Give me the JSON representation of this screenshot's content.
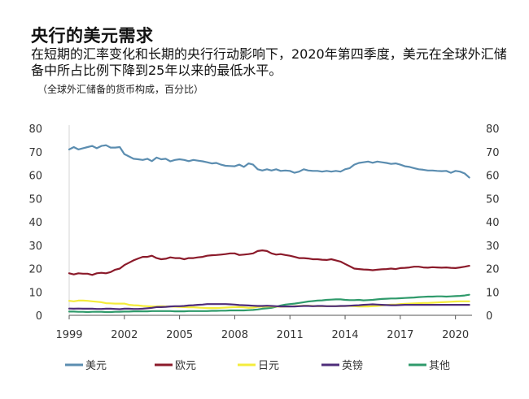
{
  "header": {
    "title": "央行的美元需求",
    "subtitle": "在短期的汇率变化和长期的央行行动影响下，2020年第四季度，美元在全球外汇储备中所占比例下降到25年以来的最低水平。",
    "note": "（全球外汇储备的货币构成，百分比）"
  },
  "chart_data": {
    "type": "line",
    "title": "",
    "xlabel": "",
    "ylabel": "",
    "ylim": [
      0,
      80
    ],
    "y_ticks": [
      0,
      10,
      20,
      30,
      40,
      50,
      60,
      70,
      80
    ],
    "xlim": [
      1999,
      2020.9
    ],
    "x_ticks": [
      1999,
      2002,
      2005,
      2008,
      2011,
      2014,
      2017,
      2020
    ],
    "grid": false,
    "legend_position": "bottom",
    "x": [
      1999,
      1999.25,
      1999.5,
      1999.75,
      2000,
      2000.25,
      2000.5,
      2000.75,
      2001,
      2001.25,
      2001.5,
      2001.75,
      2002,
      2002.25,
      2002.5,
      2002.75,
      2003,
      2003.25,
      2003.5,
      2003.75,
      2004,
      2004.25,
      2004.5,
      2004.75,
      2005,
      2005.25,
      2005.5,
      2005.75,
      2006,
      2006.25,
      2006.5,
      2006.75,
      2007,
      2007.25,
      2007.5,
      2007.75,
      2008,
      2008.25,
      2008.5,
      2008.75,
      2009,
      2009.25,
      2009.5,
      2009.75,
      2010,
      2010.25,
      2010.5,
      2010.75,
      2011,
      2011.25,
      2011.5,
      2011.75,
      2012,
      2012.25,
      2012.5,
      2012.75,
      2013,
      2013.25,
      2013.5,
      2013.75,
      2014,
      2014.25,
      2014.5,
      2014.75,
      2015,
      2015.25,
      2015.5,
      2015.75,
      2016,
      2016.25,
      2016.5,
      2016.75,
      2017,
      2017.25,
      2017.5,
      2017.75,
      2018,
      2018.25,
      2018.5,
      2018.75,
      2019,
      2019.25,
      2019.5,
      2019.75,
      2020,
      2020.25,
      2020.5,
      2020.75
    ],
    "series": [
      {
        "name": "美元",
        "color": "#5b8db0",
        "values": [
          71.0,
          72.0,
          71.0,
          71.5,
          72.0,
          72.5,
          71.5,
          72.5,
          72.8,
          71.8,
          71.8,
          72.0,
          69.0,
          68.0,
          67.0,
          66.8,
          66.5,
          67.0,
          66.0,
          67.5,
          66.8,
          67.0,
          65.9,
          66.5,
          66.8,
          66.5,
          66.0,
          66.5,
          66.2,
          65.9,
          65.5,
          65.0,
          65.2,
          64.5,
          64.0,
          63.9,
          63.8,
          64.5,
          63.5,
          65.0,
          64.5,
          62.5,
          62.0,
          62.5,
          62.0,
          62.5,
          61.8,
          62.0,
          61.8,
          61.0,
          61.5,
          62.5,
          62.0,
          61.8,
          61.8,
          61.5,
          61.8,
          61.5,
          61.8,
          61.5,
          62.5,
          63.0,
          64.5,
          65.2,
          65.5,
          65.8,
          65.3,
          65.8,
          65.5,
          65.2,
          64.8,
          65.0,
          64.5,
          63.8,
          63.5,
          63.0,
          62.5,
          62.3,
          62.0,
          62.0,
          61.8,
          61.7,
          61.8,
          61.0,
          61.8,
          61.5,
          60.7,
          59.0
        ]
      },
      {
        "name": "欧元",
        "color": "#8b1a2a",
        "values": [
          18.0,
          17.5,
          18.0,
          17.8,
          17.8,
          17.3,
          18.0,
          18.2,
          18.0,
          18.5,
          19.5,
          20.0,
          21.5,
          22.5,
          23.5,
          24.3,
          25.0,
          25.0,
          25.5,
          24.5,
          24.0,
          24.2,
          24.8,
          24.5,
          24.5,
          24.0,
          24.5,
          24.5,
          24.8,
          25.0,
          25.5,
          25.7,
          25.8,
          26.0,
          26.2,
          26.5,
          26.5,
          25.8,
          26.0,
          26.2,
          26.5,
          27.5,
          27.8,
          27.5,
          26.5,
          26.0,
          26.2,
          25.8,
          25.5,
          25.0,
          24.5,
          24.5,
          24.3,
          24.0,
          24.0,
          23.8,
          23.7,
          24.0,
          23.5,
          23.0,
          22.0,
          21.0,
          20.0,
          19.8,
          19.6,
          19.5,
          19.3,
          19.5,
          19.7,
          19.8,
          20.0,
          19.8,
          20.2,
          20.3,
          20.5,
          20.8,
          20.8,
          20.5,
          20.4,
          20.6,
          20.5,
          20.4,
          20.5,
          20.3,
          20.2,
          20.5,
          20.8,
          21.2
        ]
      },
      {
        "name": "日元",
        "color": "#f4ec3c",
        "values": [
          6.2,
          6.0,
          6.3,
          6.3,
          6.2,
          6.0,
          5.8,
          5.6,
          5.2,
          5.1,
          5.0,
          5.0,
          5.0,
          4.5,
          4.3,
          4.2,
          4.0,
          3.9,
          3.8,
          3.8,
          3.9,
          3.8,
          3.8,
          3.7,
          3.6,
          3.5,
          3.4,
          3.4,
          3.3,
          3.2,
          3.1,
          3.1,
          3.1,
          3.2,
          3.3,
          3.4,
          3.5,
          3.5,
          3.4,
          3.2,
          3.3,
          3.6,
          3.7,
          3.8,
          3.8,
          3.8,
          3.7,
          3.8,
          3.8,
          3.9,
          4.0,
          4.1,
          4.1,
          4.0,
          3.9,
          3.9,
          3.9,
          3.9,
          3.9,
          3.9,
          4.0,
          4.0,
          3.9,
          3.8,
          3.8,
          3.8,
          3.9,
          4.0,
          4.2,
          4.4,
          4.6,
          4.6,
          4.8,
          4.9,
          5.0,
          5.1,
          5.2,
          5.3,
          5.3,
          5.4,
          5.5,
          5.6,
          5.7,
          5.8,
          5.9,
          6.0,
          6.0,
          6.0
        ]
      },
      {
        "name": "英镑",
        "color": "#4e2c7a",
        "values": [
          2.9,
          2.8,
          2.9,
          2.8,
          2.8,
          2.8,
          2.7,
          2.7,
          2.8,
          2.8,
          2.7,
          2.6,
          2.8,
          2.8,
          2.7,
          2.7,
          2.8,
          3.0,
          3.2,
          3.5,
          3.5,
          3.6,
          3.8,
          3.9,
          3.9,
          4.0,
          4.2,
          4.3,
          4.5,
          4.6,
          4.8,
          4.8,
          4.8,
          4.8,
          4.8,
          4.7,
          4.6,
          4.4,
          4.3,
          4.2,
          4.1,
          4.0,
          4.0,
          4.1,
          4.0,
          3.9,
          3.8,
          3.8,
          3.8,
          3.8,
          3.9,
          4.0,
          4.0,
          3.9,
          4.0,
          4.0,
          3.9,
          3.9,
          3.9,
          4.0,
          4.0,
          4.1,
          4.2,
          4.3,
          4.5,
          4.6,
          4.7,
          4.6,
          4.5,
          4.4,
          4.3,
          4.3,
          4.4,
          4.5,
          4.5,
          4.5,
          4.5,
          4.5,
          4.5,
          4.5,
          4.5,
          4.5,
          4.5,
          4.5,
          4.5,
          4.5,
          4.5,
          4.5
        ]
      },
      {
        "name": "其他",
        "color": "#2f9a6b",
        "values": [
          1.6,
          1.6,
          1.5,
          1.5,
          1.4,
          1.5,
          1.5,
          1.5,
          1.4,
          1.4,
          1.5,
          1.5,
          1.6,
          1.6,
          1.7,
          1.7,
          1.7,
          1.7,
          1.8,
          1.8,
          1.8,
          1.8,
          1.8,
          1.7,
          1.7,
          1.7,
          1.8,
          1.8,
          1.8,
          1.8,
          1.8,
          1.9,
          1.9,
          2.0,
          2.0,
          2.1,
          2.1,
          2.1,
          2.1,
          2.2,
          2.3,
          2.5,
          2.8,
          3.0,
          3.2,
          3.6,
          4.2,
          4.6,
          4.8,
          5.0,
          5.3,
          5.6,
          5.9,
          6.1,
          6.3,
          6.4,
          6.6,
          6.7,
          6.8,
          6.8,
          6.6,
          6.5,
          6.5,
          6.6,
          6.4,
          6.5,
          6.6,
          6.8,
          7.0,
          7.1,
          7.2,
          7.2,
          7.3,
          7.4,
          7.5,
          7.6,
          7.8,
          7.9,
          8.0,
          8.0,
          8.1,
          8.1,
          8.0,
          8.1,
          8.2,
          8.3,
          8.5,
          8.8
        ]
      }
    ]
  }
}
